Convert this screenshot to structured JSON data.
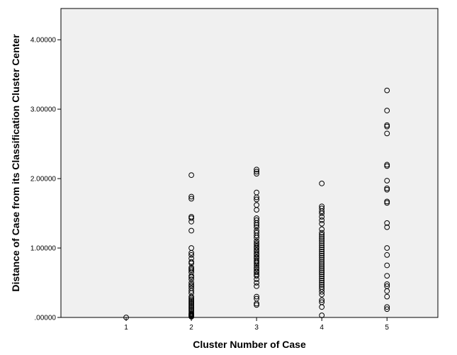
{
  "chart_data": {
    "type": "scatter",
    "title": "",
    "xlabel": "Cluster Number of Case",
    "ylabel": "Distance of Case from its Classification Cluster Center",
    "x_ticks": [
      "1",
      "2",
      "3",
      "4",
      "5"
    ],
    "y_ticks": [
      ".00000",
      "1.00000",
      "2.00000",
      "3.00000",
      "4.00000"
    ],
    "xlim": [
      0.0,
      5.78
    ],
    "ylim": [
      0,
      4.45
    ],
    "grid": false,
    "colors": {
      "plot_background": "#f0f0f0",
      "marker_stroke": "#000000"
    },
    "series": [
      {
        "x": 1,
        "values": [
          0.0
        ]
      },
      {
        "x": 2,
        "values": [
          2.05,
          1.74,
          1.71,
          1.45,
          1.43,
          1.38,
          1.25,
          1.0,
          0.93,
          0.9,
          0.85,
          0.8,
          0.78,
          0.72,
          0.7,
          0.68,
          0.65,
          0.6,
          0.58,
          0.55,
          0.5,
          0.47,
          0.45,
          0.42,
          0.38,
          0.35,
          0.3,
          0.28,
          0.26,
          0.24,
          0.22,
          0.2,
          0.18,
          0.16,
          0.14,
          0.12,
          0.1,
          0.08,
          0.06,
          0.05,
          0.04,
          0.03,
          0.02,
          0.01
        ]
      },
      {
        "x": 3,
        "values": [
          2.13,
          2.1,
          2.07,
          1.8,
          1.73,
          1.7,
          1.62,
          1.55,
          1.43,
          1.4,
          1.36,
          1.33,
          1.3,
          1.25,
          1.22,
          1.18,
          1.15,
          1.1,
          1.07,
          1.05,
          1.02,
          1.0,
          0.97,
          0.95,
          0.92,
          0.9,
          0.87,
          0.85,
          0.82,
          0.8,
          0.78,
          0.75,
          0.72,
          0.7,
          0.67,
          0.65,
          0.62,
          0.6,
          0.55,
          0.5,
          0.45,
          0.3,
          0.27,
          0.2,
          0.18
        ]
      },
      {
        "x": 4,
        "values": [
          1.93,
          1.6,
          1.57,
          1.53,
          1.5,
          1.45,
          1.4,
          1.35,
          1.27,
          1.22,
          1.19,
          1.16,
          1.13,
          1.1,
          1.07,
          1.04,
          1.01,
          0.98,
          0.95,
          0.92,
          0.89,
          0.86,
          0.83,
          0.8,
          0.77,
          0.74,
          0.71,
          0.68,
          0.65,
          0.62,
          0.59,
          0.56,
          0.53,
          0.5,
          0.47,
          0.44,
          0.41,
          0.37,
          0.33,
          0.25,
          0.22,
          0.15,
          0.03
        ]
      },
      {
        "x": 5,
        "values": [
          3.27,
          2.98,
          2.77,
          2.75,
          2.65,
          2.2,
          2.18,
          1.97,
          1.86,
          1.84,
          1.67,
          1.65,
          1.36,
          1.3,
          1.0,
          0.9,
          0.75,
          0.6,
          0.48,
          0.45,
          0.38,
          0.3,
          0.15,
          0.12
        ]
      }
    ]
  }
}
